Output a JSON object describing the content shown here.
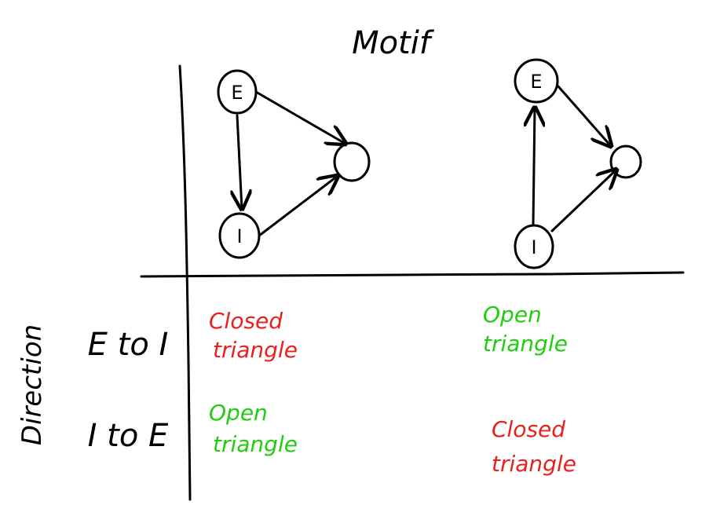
{
  "title": "Motif",
  "row_axis_label": "Direction",
  "rows": [
    {
      "label": "E to I"
    },
    {
      "label": "I to E"
    }
  ],
  "motifs": [
    {
      "nodes": {
        "top": "E",
        "bottom": "I",
        "right": ""
      }
    },
    {
      "nodes": {
        "top": "E",
        "bottom": "I",
        "right": ""
      }
    }
  ],
  "cells": [
    [
      {
        "line1": "Closed",
        "line2": "triangle",
        "color": "#e8211c"
      },
      {
        "line1": "Open",
        "line2": "triangle",
        "color": "#22cc11"
      }
    ],
    [
      {
        "line1": "Open",
        "line2": "triangle",
        "color": "#22cc11"
      },
      {
        "line1": "Closed",
        "line2": "triangle",
        "color": "#e8211c"
      }
    ]
  ]
}
